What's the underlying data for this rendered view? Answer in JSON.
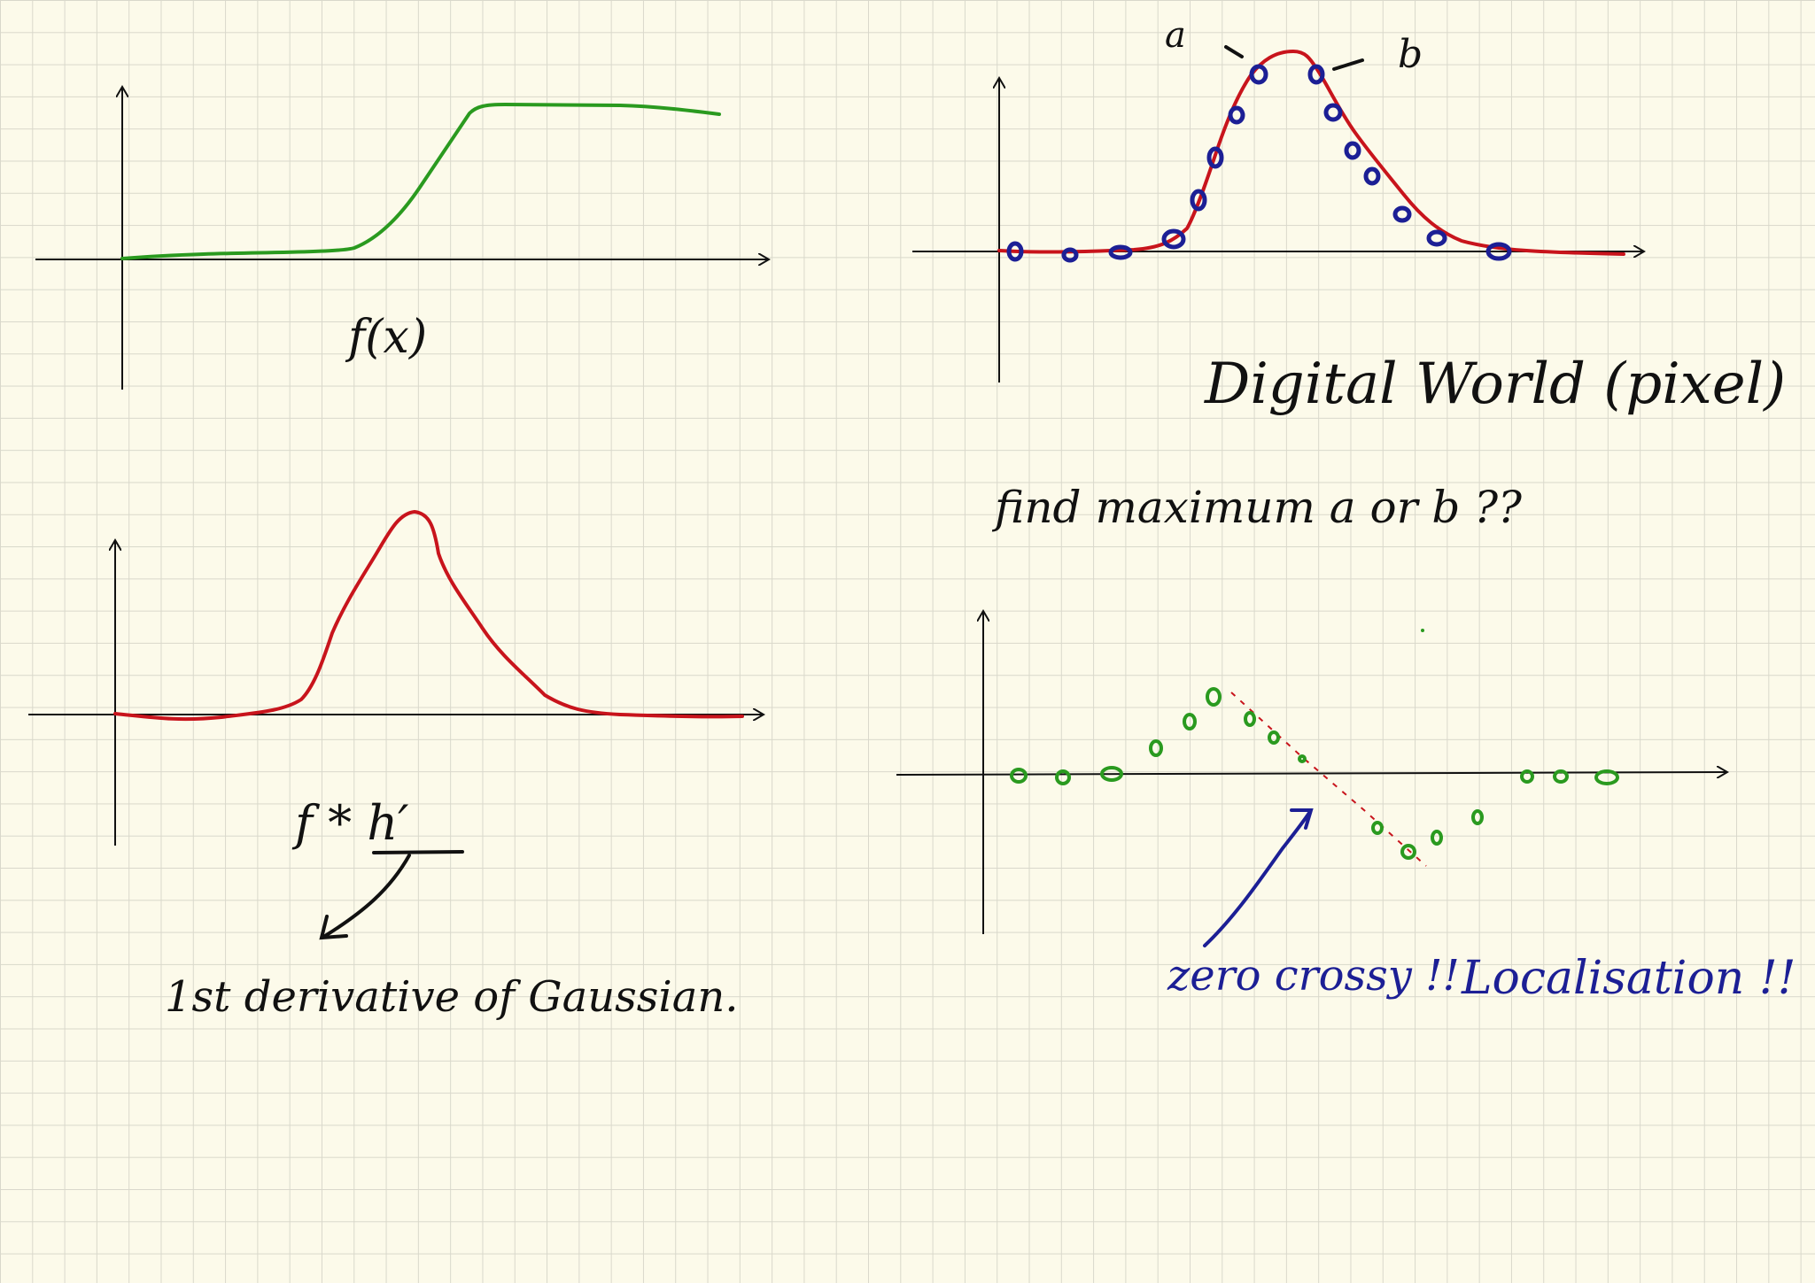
{
  "labels": {
    "fx": "f(x)",
    "conv": "f * h′",
    "derivative_note": "1st derivative of Gaussian.",
    "digital_world": "Digital World (pixel)",
    "question": "find maximum   a  or  b ??",
    "point_a": "a",
    "point_b": "b",
    "zero_crossing": "zero crossy !!",
    "localisation": "Localisation !!"
  },
  "colors": {
    "ink": "#111111",
    "green": "#2a9a1f",
    "red": "#c8141c",
    "blue": "#1c1f95",
    "background": "#fcfaea",
    "grid": "#d9d8cb"
  }
}
